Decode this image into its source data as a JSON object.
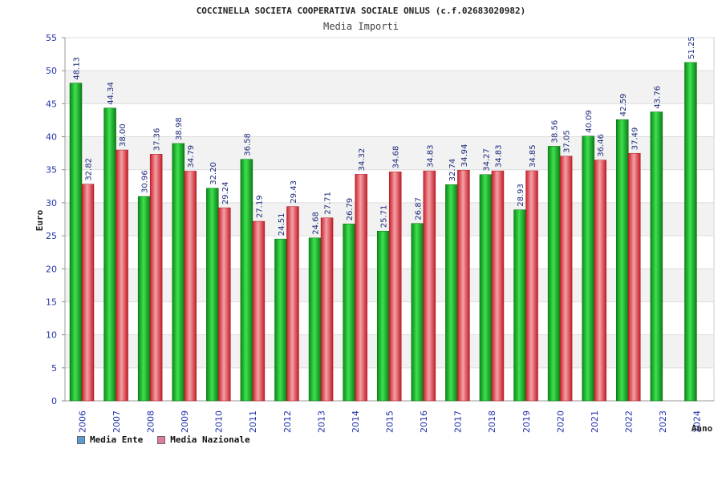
{
  "chart_data": {
    "type": "bar",
    "title": "COCCINELLA SOCIETA COOPERATIVA SOCIALE ONLUS (c.f.02683020982)",
    "subtitle": "Media Importi",
    "ylabel": "Euro",
    "xlabel": "Anno",
    "ylim": [
      0,
      55
    ],
    "yticks": [
      0,
      5,
      10,
      15,
      20,
      25,
      30,
      35,
      40,
      45,
      50,
      55
    ],
    "categories": [
      "2006",
      "2007",
      "2008",
      "2009",
      "2010",
      "2011",
      "2012",
      "2013",
      "2014",
      "2015",
      "2016",
      "2017",
      "2018",
      "2019",
      "2020",
      "2021",
      "2022",
      "2023",
      "2024"
    ],
    "series": [
      {
        "name": "Media Ente",
        "color": "#22bb33",
        "values": [
          48.13,
          44.34,
          30.96,
          38.98,
          32.2,
          36.58,
          24.51,
          24.68,
          26.79,
          25.71,
          26.87,
          32.74,
          34.27,
          28.93,
          38.56,
          40.09,
          42.59,
          43.76,
          51.25
        ],
        "labels": [
          "48.13",
          "44.34",
          "30.96",
          "38.98",
          "32.20",
          "36.58",
          "24.51",
          "24.68",
          "26.79",
          "25.71",
          "26.87",
          "32.74",
          "34.27",
          "28.93",
          "38.56",
          "40.09",
          "42.59",
          "43.76",
          "51.25"
        ]
      },
      {
        "name": "Media Nazionale",
        "color": "#e0404a",
        "values": [
          32.82,
          38.0,
          37.36,
          34.79,
          29.24,
          27.19,
          29.43,
          27.71,
          34.32,
          34.68,
          34.83,
          34.94,
          34.83,
          34.85,
          37.05,
          36.46,
          37.49,
          null,
          null
        ],
        "labels": [
          "32.82",
          "38.00",
          "37.36",
          "34.79",
          "29.24",
          "27.19",
          "29.43",
          "27.71",
          "34.32",
          "34.68",
          "34.83",
          "34.94",
          "34.83",
          "34.85",
          "37.05",
          "36.46",
          "37.49",
          null,
          null
        ]
      }
    ],
    "grid": true,
    "legend_position": "bottom-left"
  },
  "legend": {
    "items": [
      {
        "label": "Media Ente",
        "swatch_color": "#5b9bd5"
      },
      {
        "label": "Media Nazionale",
        "swatch_color": "#e07aa0"
      }
    ]
  }
}
